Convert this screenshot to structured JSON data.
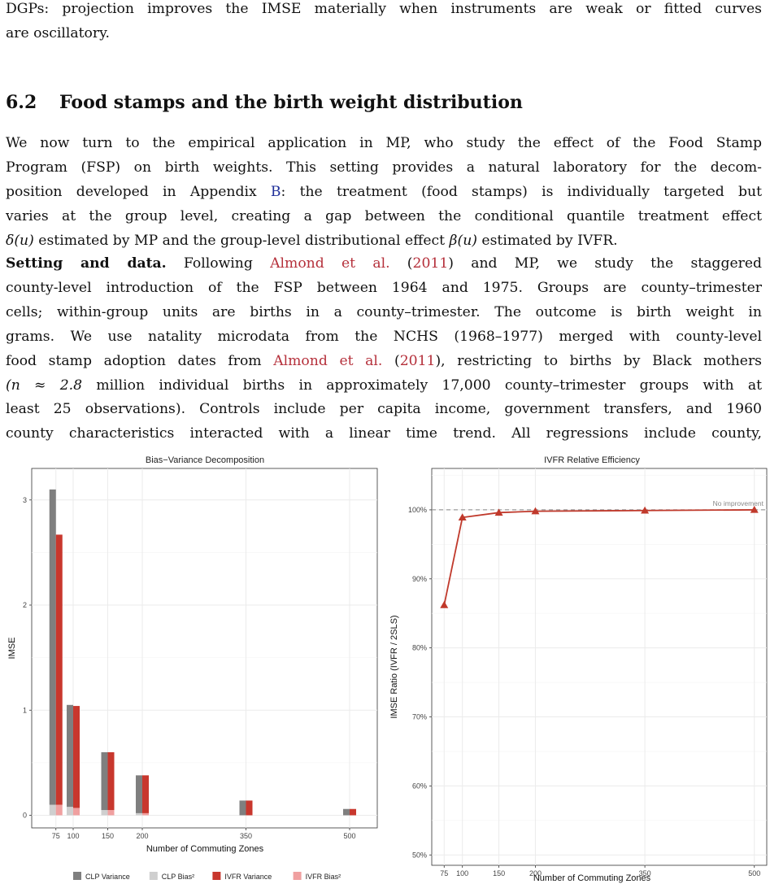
{
  "text": {
    "intro_line1": "DGPs: projection improves the IMSE materially when instruments are weak or fitted curves",
    "intro_line2": "are oscillatory.",
    "section_number": "6.2",
    "section_title": "Food stamps and the birth weight distribution",
    "p1_l1": "We now turn to the empirical application in MP, who study the effect of the Food Stamp",
    "p1_l2": "Program (FSP) on birth weights. This setting provides a natural laboratory for the decom-",
    "p1_l3a": "position developed in Appendix ",
    "p1_l3_ref": "B",
    "p1_l3b": ": the treatment (food stamps) is individually targeted but",
    "p1_l4": "varies at the group level, creating a gap between the conditional quantile treatment effect",
    "p1_l5_delta": "δ(u)",
    "p1_l5a": " estimated by MP and the group-level distributional effect ",
    "p1_l5_beta": "β(u)",
    "p1_l5b": " estimated by IVFR.",
    "p2_heading": "Setting and data.",
    "p2_l1a": "  Following ",
    "p2_cite1": "Almond et al.",
    "p2_cite1_open": " (",
    "p2_cite1_year": "2011",
    "p2_l1b": ") and MP, we study the staggered",
    "p2_l2": "county-level introduction of the FSP between 1964 and 1975. Groups are county–trimester",
    "p2_l3": "cells; within-group units are births in a county–trimester. The outcome is birth weight in",
    "p2_l4": "grams. We use natality microdata from the NCHS (1968–1977) merged with county-level",
    "p2_l5a": "food stamp adoption dates from ",
    "p2_cite2": "Almond et al.",
    "p2_cite2_year": "2011",
    "p2_l5b": "), restricting to births by Black mothers",
    "p2_l6_math": "(n ≈ 2.8",
    "p2_l6b": " million individual births in approximately 17,000 county–trimester groups with at",
    "p2_l7": "least 25 observations). Controls include per capita income, government transfers, and 1960",
    "p2_l8": "county characteristics interacted with a linear time trend. All regressions include county,"
  },
  "colors": {
    "clp_variance": "#7f7f7f",
    "clp_bias": "#cfcfcf",
    "ivfr_variance": "#c8372d",
    "ivfr_bias": "#f0a0a0",
    "line": "#c0392b",
    "grid": "#ebebeb"
  },
  "chart_data": [
    {
      "type": "bar",
      "title": "Bias−Variance Decomposition",
      "xlabel": "Number of Commuting Zones",
      "ylabel": "IMSE",
      "x": [
        75,
        100,
        150,
        200,
        350,
        500
      ],
      "xlim": [
        40,
        540
      ],
      "ylim": [
        -0.12,
        3.3
      ],
      "yticks": [
        0,
        1,
        2,
        3
      ],
      "stacked_pairs": true,
      "series": [
        {
          "name": "CLP Variance",
          "group": "CLP",
          "values": [
            3.0,
            0.97,
            0.55,
            0.36,
            0.14,
            0.06
          ]
        },
        {
          "name": "CLP Bias²",
          "group": "CLP",
          "values": [
            0.1,
            0.08,
            0.05,
            0.02,
            0.0,
            0.0
          ]
        },
        {
          "name": "IVFR Variance",
          "group": "IVFR",
          "values": [
            2.57,
            0.97,
            0.55,
            0.36,
            0.14,
            0.06
          ]
        },
        {
          "name": "IVFR Bias²",
          "group": "IVFR",
          "values": [
            0.1,
            0.07,
            0.05,
            0.02,
            0.0,
            0.0
          ]
        }
      ],
      "legend": "bottom",
      "grid": true
    },
    {
      "type": "line",
      "title": "IVFR Relative Efficiency",
      "xlabel": "Number of Commuting Zones",
      "ylabel": "IMSE Ratio (IVFR / 2SLS)",
      "x": [
        75,
        100,
        150,
        200,
        350,
        500
      ],
      "y": [
        0.862,
        0.989,
        0.996,
        0.998,
        0.999,
        1.0
      ],
      "xlim": [
        58,
        517
      ],
      "ylim": [
        0.485,
        1.06
      ],
      "yticks": [
        0.5,
        0.6,
        0.7,
        0.8,
        0.9,
        1.0
      ],
      "ytick_labels": [
        "50%",
        "60%",
        "70%",
        "80%",
        "90%",
        "100%"
      ],
      "reference_line": {
        "y": 1.0,
        "label": "No improvement"
      },
      "marker": "triangle",
      "grid": true
    }
  ]
}
